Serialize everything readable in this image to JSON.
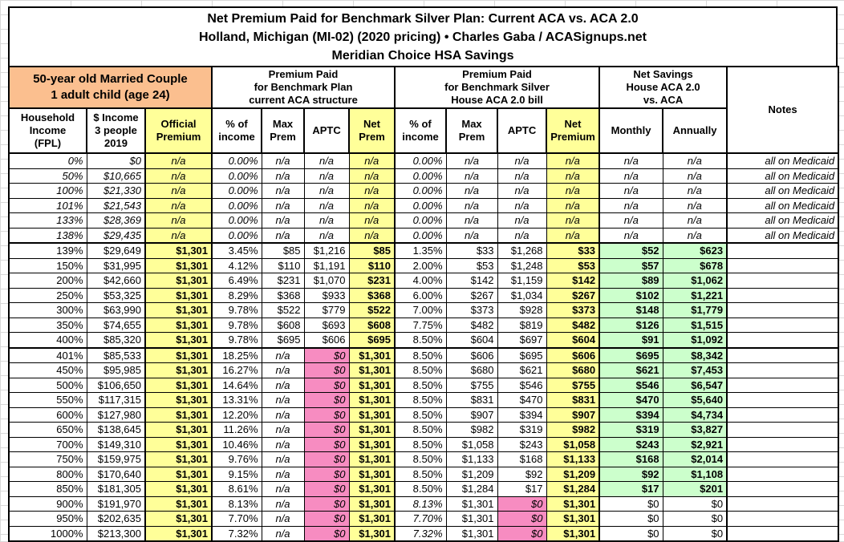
{
  "colors": {
    "header_orange": "#FBBF8F",
    "highlight_yellow": "#FFFF99",
    "zero_aptc_pink": "#F78CC1",
    "savings_green": "#CCFFCC",
    "border_black": "#000000"
  },
  "chart_data": {
    "type": "table",
    "title": "Net Premium Paid for Benchmark Silver Plan: Current ACA vs. ACA 2.0",
    "subtitle": "Holland, Michigan (MI-02) (2020 pricing) • Charles Gaba / ACASignups.net",
    "subtitle2": "Meridian Choice HSA Savings",
    "column_groups": [
      {
        "label": "50-year old Married Couple\n1 adult child (age 24)",
        "span": 3
      },
      {
        "label": "Premium Paid\nfor Benchmark Plan\ncurrent ACA structure",
        "span": 4
      },
      {
        "label": "Premium Paid\nfor Benchmark Silver\nHouse ACA 2.0 bill",
        "span": 4
      },
      {
        "label": "Net Savings\nHouse ACA 2.0\nvs. ACA",
        "span": 2
      },
      {
        "label": "Notes",
        "span": 1
      }
    ],
    "columns": [
      "Household\nIncome\n(FPL)",
      "$ Income\n3 people\n2019",
      "Official\nPremium",
      "% of\nincome",
      "Max\nPrem",
      "APTC",
      "Net\nPrem",
      "% of\nincome",
      "Max\nPrem",
      "APTC",
      "Net\nPremium",
      "Monthly",
      "Annually",
      "Notes"
    ],
    "rows": [
      {
        "type": "medicaid",
        "cells": [
          "0%",
          "$0",
          "n/a",
          "0.00%",
          "n/a",
          "n/a",
          "n/a",
          "0.00%",
          "n/a",
          "n/a",
          "n/a",
          "n/a",
          "n/a",
          "all on Medicaid"
        ]
      },
      {
        "type": "medicaid",
        "cells": [
          "50%",
          "$10,665",
          "n/a",
          "0.00%",
          "n/a",
          "n/a",
          "n/a",
          "0.00%",
          "n/a",
          "n/a",
          "n/a",
          "n/a",
          "n/a",
          "all on Medicaid"
        ]
      },
      {
        "type": "medicaid",
        "cells": [
          "100%",
          "$21,330",
          "n/a",
          "0.00%",
          "n/a",
          "n/a",
          "n/a",
          "0.00%",
          "n/a",
          "n/a",
          "n/a",
          "n/a",
          "n/a",
          "all on Medicaid"
        ]
      },
      {
        "type": "medicaid",
        "cells": [
          "101%",
          "$21,543",
          "n/a",
          "0.00%",
          "n/a",
          "n/a",
          "n/a",
          "0.00%",
          "n/a",
          "n/a",
          "n/a",
          "n/a",
          "n/a",
          "all on Medicaid"
        ]
      },
      {
        "type": "medicaid",
        "cells": [
          "133%",
          "$28,369",
          "n/a",
          "0.00%",
          "n/a",
          "n/a",
          "n/a",
          "0.00%",
          "n/a",
          "n/a",
          "n/a",
          "n/a",
          "n/a",
          "all on Medicaid"
        ]
      },
      {
        "type": "medicaid",
        "cells": [
          "138%",
          "$29,435",
          "n/a",
          "0.00%",
          "n/a",
          "n/a",
          "n/a",
          "0.00%",
          "n/a",
          "n/a",
          "n/a",
          "n/a",
          "n/a",
          "all on Medicaid"
        ]
      },
      {
        "type": "subsidized",
        "cells": [
          "139%",
          "$29,649",
          "$1,301",
          "3.45%",
          "$85",
          "$1,216",
          "$85",
          "1.35%",
          "$33",
          "$1,268",
          "$33",
          "$52",
          "$623",
          ""
        ]
      },
      {
        "type": "subsidized",
        "cells": [
          "150%",
          "$31,995",
          "$1,301",
          "4.12%",
          "$110",
          "$1,191",
          "$110",
          "2.00%",
          "$53",
          "$1,248",
          "$53",
          "$57",
          "$678",
          ""
        ]
      },
      {
        "type": "subsidized",
        "cells": [
          "200%",
          "$42,660",
          "$1,301",
          "6.49%",
          "$231",
          "$1,070",
          "$231",
          "4.00%",
          "$142",
          "$1,159",
          "$142",
          "$89",
          "$1,062",
          ""
        ]
      },
      {
        "type": "subsidized",
        "cells": [
          "250%",
          "$53,325",
          "$1,301",
          "8.29%",
          "$368",
          "$933",
          "$368",
          "6.00%",
          "$267",
          "$1,034",
          "$267",
          "$102",
          "$1,221",
          ""
        ]
      },
      {
        "type": "subsidized",
        "cells": [
          "300%",
          "$63,990",
          "$1,301",
          "9.78%",
          "$522",
          "$779",
          "$522",
          "7.00%",
          "$373",
          "$928",
          "$373",
          "$148",
          "$1,779",
          ""
        ]
      },
      {
        "type": "subsidized",
        "cells": [
          "350%",
          "$74,655",
          "$1,301",
          "9.78%",
          "$608",
          "$693",
          "$608",
          "7.75%",
          "$482",
          "$819",
          "$482",
          "$126",
          "$1,515",
          ""
        ]
      },
      {
        "type": "subsidized",
        "cells": [
          "400%",
          "$85,320",
          "$1,301",
          "9.78%",
          "$695",
          "$606",
          "$695",
          "8.50%",
          "$604",
          "$697",
          "$604",
          "$91",
          "$1,092",
          ""
        ]
      },
      {
        "type": "over400",
        "cells": [
          "401%",
          "$85,533",
          "$1,301",
          "18.25%",
          "n/a",
          "$0",
          "$1,301",
          "8.50%",
          "$606",
          "$695",
          "$606",
          "$695",
          "$8,342",
          ""
        ]
      },
      {
        "type": "over400",
        "cells": [
          "450%",
          "$95,985",
          "$1,301",
          "16.27%",
          "n/a",
          "$0",
          "$1,301",
          "8.50%",
          "$680",
          "$621",
          "$680",
          "$621",
          "$7,453",
          ""
        ]
      },
      {
        "type": "over400",
        "cells": [
          "500%",
          "$106,650",
          "$1,301",
          "14.64%",
          "n/a",
          "$0",
          "$1,301",
          "8.50%",
          "$755",
          "$546",
          "$755",
          "$546",
          "$6,547",
          ""
        ]
      },
      {
        "type": "over400",
        "cells": [
          "550%",
          "$117,315",
          "$1,301",
          "13.31%",
          "n/a",
          "$0",
          "$1,301",
          "8.50%",
          "$831",
          "$470",
          "$831",
          "$470",
          "$5,640",
          ""
        ]
      },
      {
        "type": "over400",
        "cells": [
          "600%",
          "$127,980",
          "$1,301",
          "12.20%",
          "n/a",
          "$0",
          "$1,301",
          "8.50%",
          "$907",
          "$394",
          "$907",
          "$394",
          "$4,734",
          ""
        ]
      },
      {
        "type": "over400",
        "cells": [
          "650%",
          "$138,645",
          "$1,301",
          "11.26%",
          "n/a",
          "$0",
          "$1,301",
          "8.50%",
          "$982",
          "$319",
          "$982",
          "$319",
          "$3,827",
          ""
        ]
      },
      {
        "type": "over400",
        "cells": [
          "700%",
          "$149,310",
          "$1,301",
          "10.46%",
          "n/a",
          "$0",
          "$1,301",
          "8.50%",
          "$1,058",
          "$243",
          "$1,058",
          "$243",
          "$2,921",
          ""
        ]
      },
      {
        "type": "over400",
        "cells": [
          "750%",
          "$159,975",
          "$1,301",
          "9.76%",
          "n/a",
          "$0",
          "$1,301",
          "8.50%",
          "$1,133",
          "$168",
          "$1,133",
          "$168",
          "$2,014",
          ""
        ]
      },
      {
        "type": "over400",
        "cells": [
          "800%",
          "$170,640",
          "$1,301",
          "9.15%",
          "n/a",
          "$0",
          "$1,301",
          "8.50%",
          "$1,209",
          "$92",
          "$1,209",
          "$92",
          "$1,108",
          ""
        ]
      },
      {
        "type": "over400",
        "cells": [
          "850%",
          "$181,305",
          "$1,301",
          "8.61%",
          "n/a",
          "$0",
          "$1,301",
          "8.50%",
          "$1,284",
          "$17",
          "$1,284",
          "$17",
          "$201",
          ""
        ]
      },
      {
        "type": "cap",
        "cells": [
          "900%",
          "$191,970",
          "$1,301",
          "8.13%",
          "n/a",
          "$0",
          "$1,301",
          "8.13%",
          "$1,301",
          "$0",
          "$1,301",
          "$0",
          "$0",
          ""
        ]
      },
      {
        "type": "cap",
        "cells": [
          "950%",
          "$202,635",
          "$1,301",
          "7.70%",
          "n/a",
          "$0",
          "$1,301",
          "7.70%",
          "$1,301",
          "$0",
          "$1,301",
          "$0",
          "$0",
          ""
        ]
      },
      {
        "type": "cap",
        "cells": [
          "1000%",
          "$213,300",
          "$1,301",
          "7.32%",
          "n/a",
          "$0",
          "$1,301",
          "7.32%",
          "$1,301",
          "$0",
          "$1,301",
          "$0",
          "$0",
          ""
        ]
      }
    ]
  }
}
